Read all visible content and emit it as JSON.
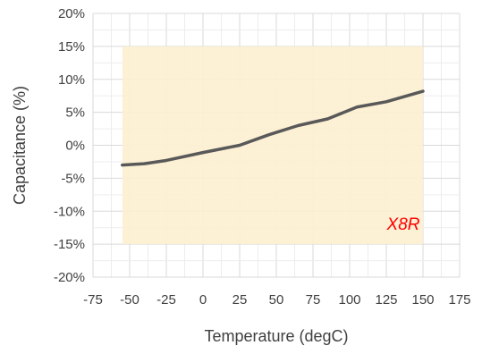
{
  "chart_data": {
    "type": "line",
    "title": "",
    "xlabel": "Temperature (degC)",
    "ylabel": "Capacitance (%)",
    "xlim": [
      -75,
      175
    ],
    "ylim": [
      -20,
      20
    ],
    "x_ticks": [
      "-75",
      "-50",
      "-25",
      "0",
      "25",
      "50",
      "75",
      "100",
      "125",
      "150",
      "175"
    ],
    "y_ticks": [
      "-20%",
      "-15%",
      "-10%",
      "-5%",
      "0%",
      "5%",
      "10%",
      "15%",
      "20%"
    ],
    "grid": true,
    "legend": "none",
    "series": [
      {
        "color": "#595959",
        "x": [
          -55,
          -40,
          -25,
          0,
          25,
          45,
          65,
          85,
          105,
          125,
          150
        ],
        "y": [
          -3.0,
          -2.8,
          -2.3,
          -1.1,
          0.0,
          1.6,
          3.0,
          4.0,
          5.8,
          6.6,
          8.2
        ]
      }
    ],
    "spec_band": {
      "label": "X8R",
      "x": [
        -55,
        150
      ],
      "y": [
        -15,
        15
      ],
      "fill": "#fdf0d0",
      "label_color": "#ff0000"
    }
  }
}
